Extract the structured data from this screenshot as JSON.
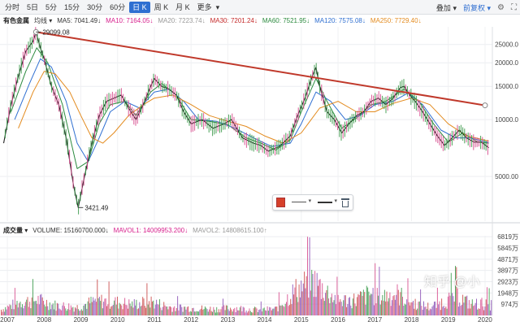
{
  "toolbar": {
    "periods": [
      {
        "label": "分时",
        "active": false,
        "caret": false
      },
      {
        "label": "5日",
        "active": false,
        "caret": false
      },
      {
        "label": "5分",
        "active": false,
        "caret": false
      },
      {
        "label": "15分",
        "active": false,
        "caret": false
      },
      {
        "label": "30分",
        "active": false,
        "caret": false
      },
      {
        "label": "60分",
        "active": false,
        "caret": false
      },
      {
        "label": "日 K",
        "active": true,
        "caret": false
      },
      {
        "label": "周 K",
        "active": false,
        "caret": false
      },
      {
        "label": "月 K",
        "active": false,
        "caret": false
      },
      {
        "label": "更多",
        "active": false,
        "caret": true
      }
    ],
    "overlay_label": "叠加",
    "adjust_label": "前复权",
    "caret_glyph": "▾"
  },
  "ma_legend": {
    "title": "有色金属",
    "kind": "均线",
    "items": [
      {
        "label": "MA5: 7041.49",
        "arrow": "↓",
        "color": "#333333"
      },
      {
        "label": "MA10: 7164.05",
        "arrow": "↓",
        "color": "#d61f8c"
      },
      {
        "label": "MA20: 7223.74",
        "arrow": "↓",
        "color": "#999999"
      },
      {
        "label": "MA30: 7201.24",
        "arrow": "↓",
        "color": "#c42a2a"
      },
      {
        "label": "MA60: 7521.95",
        "arrow": "↓",
        "color": "#2b8a3e"
      },
      {
        "label": "MA120: 7575.08",
        "arrow": "↓",
        "color": "#2f6fd1"
      },
      {
        "label": "MA250: 7729.40",
        "arrow": "↓",
        "color": "#e38b1f"
      }
    ]
  },
  "vol_legend": {
    "title": "成交量",
    "items": [
      {
        "label": "VOLUME: 15160700.000",
        "arrow": "↓",
        "color": "#333333"
      },
      {
        "label": "MAVOL1: 14009953.200",
        "arrow": "↓",
        "color": "#d61f8c"
      },
      {
        "label": "MAVOL2: 14808615.100",
        "arrow": "↑",
        "color": "#999999"
      }
    ]
  },
  "chart_data": {
    "type": "line",
    "subtitle": "有色金属",
    "x_ticks": [
      "2007",
      "2008",
      "2009",
      "2010",
      "2011",
      "2012",
      "2013",
      "2014",
      "2015",
      "2016",
      "2017",
      "2018",
      "2019",
      "2020"
    ],
    "x_range": [
      2006.8,
      2020.2
    ],
    "y_scale": "log",
    "y_ticks": [
      5000,
      10000,
      15000,
      20000,
      25000
    ],
    "y_tick_labels": [
      "5000.00",
      "10000.0",
      "15000.0",
      "20000.0",
      "25000.0"
    ],
    "ylim": [
      2900,
      31000
    ],
    "series": [
      {
        "name": "有色金属",
        "color": "#222222",
        "points": [
          [
            2006.9,
            7500
          ],
          [
            2007.1,
            12000
          ],
          [
            2007.3,
            17000
          ],
          [
            2007.5,
            23000
          ],
          [
            2007.7,
            26000
          ],
          [
            2007.78,
            29099
          ],
          [
            2007.9,
            24000
          ],
          [
            2008.0,
            21000
          ],
          [
            2008.2,
            15000
          ],
          [
            2008.4,
            12000
          ],
          [
            2008.6,
            8000
          ],
          [
            2008.8,
            4500
          ],
          [
            2008.93,
            3421
          ],
          [
            2009.1,
            5000
          ],
          [
            2009.3,
            7500
          ],
          [
            2009.5,
            10500
          ],
          [
            2009.7,
            12500
          ],
          [
            2009.9,
            13000
          ],
          [
            2010.1,
            13500
          ],
          [
            2010.3,
            11500
          ],
          [
            2010.5,
            10000
          ],
          [
            2010.7,
            12000
          ],
          [
            2010.9,
            15000
          ],
          [
            2011.0,
            16500
          ],
          [
            2011.2,
            15000
          ],
          [
            2011.4,
            14500
          ],
          [
            2011.6,
            13500
          ],
          [
            2011.8,
            11000
          ],
          [
            2012.0,
            9500
          ],
          [
            2012.3,
            10000
          ],
          [
            2012.6,
            9000
          ],
          [
            2012.9,
            9500
          ],
          [
            2013.1,
            10000
          ],
          [
            2013.4,
            8000
          ],
          [
            2013.7,
            7500
          ],
          [
            2013.9,
            7300
          ],
          [
            2014.1,
            6800
          ],
          [
            2014.4,
            7200
          ],
          [
            2014.7,
            8200
          ],
          [
            2014.9,
            10500
          ],
          [
            2015.1,
            13000
          ],
          [
            2015.3,
            17000
          ],
          [
            2015.4,
            18900
          ],
          [
            2015.5,
            15000
          ],
          [
            2015.7,
            11000
          ],
          [
            2015.9,
            10000
          ],
          [
            2016.1,
            8500
          ],
          [
            2016.3,
            9500
          ],
          [
            2016.5,
            10500
          ],
          [
            2016.7,
            11000
          ],
          [
            2016.9,
            12500
          ],
          [
            2017.1,
            13000
          ],
          [
            2017.3,
            12000
          ],
          [
            2017.5,
            13000
          ],
          [
            2017.7,
            14800
          ],
          [
            2017.8,
            15000
          ],
          [
            2017.95,
            13500
          ],
          [
            2018.1,
            12500
          ],
          [
            2018.3,
            11000
          ],
          [
            2018.5,
            9500
          ],
          [
            2018.7,
            8200
          ],
          [
            2018.9,
            7300
          ],
          [
            2019.1,
            8000
          ],
          [
            2019.3,
            8800
          ],
          [
            2019.5,
            8000
          ],
          [
            2019.7,
            7600
          ],
          [
            2019.9,
            7600
          ],
          [
            2020.1,
            7100
          ]
        ]
      },
      {
        "name": "MA250",
        "color": "#e38b1f",
        "points": [
          [
            2007.3,
            9000
          ],
          [
            2007.7,
            14000
          ],
          [
            2008.0,
            18000
          ],
          [
            2008.3,
            17500
          ],
          [
            2008.7,
            14000
          ],
          [
            2009.0,
            10500
          ],
          [
            2009.3,
            8000
          ],
          [
            2009.6,
            7500
          ],
          [
            2009.9,
            8500
          ],
          [
            2010.3,
            10500
          ],
          [
            2010.7,
            12000
          ],
          [
            2011.0,
            13000
          ],
          [
            2011.5,
            13500
          ],
          [
            2012.0,
            12000
          ],
          [
            2012.5,
            10500
          ],
          [
            2013.0,
            9800
          ],
          [
            2013.5,
            9200
          ],
          [
            2014.0,
            8200
          ],
          [
            2014.5,
            7500
          ],
          [
            2015.0,
            8500
          ],
          [
            2015.5,
            11500
          ],
          [
            2016.0,
            12500
          ],
          [
            2016.5,
            11000
          ],
          [
            2017.0,
            11000
          ],
          [
            2017.5,
            12200
          ],
          [
            2018.0,
            13000
          ],
          [
            2018.5,
            12000
          ],
          [
            2019.0,
            9500
          ],
          [
            2019.5,
            8200
          ],
          [
            2020.1,
            7700
          ]
        ]
      },
      {
        "name": "MA120",
        "color": "#2f6fd1",
        "points": [
          [
            2007.2,
            10000
          ],
          [
            2007.6,
            15500
          ],
          [
            2007.9,
            21000
          ],
          [
            2008.2,
            19000
          ],
          [
            2008.6,
            12500
          ],
          [
            2008.9,
            7500
          ],
          [
            2009.2,
            6000
          ],
          [
            2009.5,
            8000
          ],
          [
            2009.8,
            11000
          ],
          [
            2010.2,
            12500
          ],
          [
            2010.6,
            11500
          ],
          [
            2011.0,
            14000
          ],
          [
            2011.4,
            14500
          ],
          [
            2011.8,
            12500
          ],
          [
            2012.2,
            10000
          ],
          [
            2012.7,
            9800
          ],
          [
            2013.2,
            9000
          ],
          [
            2013.7,
            8000
          ],
          [
            2014.2,
            7200
          ],
          [
            2014.7,
            7500
          ],
          [
            2015.0,
            9500
          ],
          [
            2015.4,
            14000
          ],
          [
            2015.8,
            12500
          ],
          [
            2016.2,
            10000
          ],
          [
            2016.6,
            10500
          ],
          [
            2017.0,
            12000
          ],
          [
            2017.5,
            12500
          ],
          [
            2017.9,
            13800
          ],
          [
            2018.3,
            12000
          ],
          [
            2018.8,
            8800
          ],
          [
            2019.2,
            8000
          ],
          [
            2019.6,
            8000
          ],
          [
            2020.1,
            7550
          ]
        ]
      },
      {
        "name": "MA60",
        "color": "#2b8a3e",
        "points": [
          [
            2007.1,
            11000
          ],
          [
            2007.5,
            18000
          ],
          [
            2007.8,
            24000
          ],
          [
            2008.1,
            20000
          ],
          [
            2008.5,
            12000
          ],
          [
            2008.9,
            5500
          ],
          [
            2009.2,
            6000
          ],
          [
            2009.5,
            9500
          ],
          [
            2009.8,
            12000
          ],
          [
            2010.2,
            12500
          ],
          [
            2010.5,
            10500
          ],
          [
            2010.9,
            14000
          ],
          [
            2011.2,
            15500
          ],
          [
            2011.6,
            13500
          ],
          [
            2012.0,
            10000
          ],
          [
            2012.5,
            9800
          ],
          [
            2013.0,
            9400
          ],
          [
            2013.5,
            8000
          ],
          [
            2013.9,
            7500
          ],
          [
            2014.3,
            6900
          ],
          [
            2014.7,
            7800
          ],
          [
            2015.0,
            11000
          ],
          [
            2015.4,
            16500
          ],
          [
            2015.7,
            12500
          ],
          [
            2016.1,
            9000
          ],
          [
            2016.5,
            10200
          ],
          [
            2016.9,
            12000
          ],
          [
            2017.3,
            12500
          ],
          [
            2017.8,
            14500
          ],
          [
            2018.2,
            12500
          ],
          [
            2018.6,
            9500
          ],
          [
            2019.0,
            7600
          ],
          [
            2019.4,
            8500
          ],
          [
            2019.8,
            7600
          ],
          [
            2020.1,
            7500
          ]
        ]
      }
    ],
    "trendline": {
      "color": "#c0392b",
      "points": [
        [
          2007.78,
          29099
        ],
        [
          2020.0,
          11900
        ]
      ]
    },
    "annotations": [
      {
        "text": "29099.08",
        "x": 2007.78,
        "y": 29099
      },
      {
        "text": "3421.49",
        "x": 2008.93,
        "y": 3421
      }
    ],
    "volume": {
      "type": "bar",
      "y_tick_labels": [
        "974万",
        "1948万",
        "2923万",
        "3897万",
        "4871万",
        "5845万",
        "6819万"
      ],
      "y_ticks": [
        974,
        1948,
        2923,
        3897,
        4871,
        5845,
        6819
      ],
      "ylim": [
        0,
        6900
      ],
      "profile": [
        [
          2006.8,
          600
        ],
        [
          2007.3,
          1400
        ],
        [
          2007.8,
          1700
        ],
        [
          2008.3,
          1100
        ],
        [
          2008.9,
          900
        ],
        [
          2009.4,
          1600
        ],
        [
          2009.8,
          1500
        ],
        [
          2010.4,
          1200
        ],
        [
          2010.9,
          1500
        ],
        [
          2011.4,
          900
        ],
        [
          2012.0,
          800
        ],
        [
          2012.6,
          700
        ],
        [
          2013.2,
          800
        ],
        [
          2013.8,
          600
        ],
        [
          2014.3,
          700
        ],
        [
          2014.8,
          2600
        ],
        [
          2015.3,
          3800
        ],
        [
          2015.6,
          2800
        ],
        [
          2016.0,
          1600
        ],
        [
          2016.5,
          1700
        ],
        [
          2016.9,
          2400
        ],
        [
          2017.2,
          2100
        ],
        [
          2017.6,
          2300
        ],
        [
          2018.0,
          1400
        ],
        [
          2018.5,
          900
        ],
        [
          2019.0,
          1700
        ],
        [
          2019.2,
          2200
        ],
        [
          2019.6,
          1200
        ],
        [
          2020.0,
          1300
        ],
        [
          2020.2,
          1100
        ]
      ]
    }
  },
  "watermark": "知乎 @小"
}
